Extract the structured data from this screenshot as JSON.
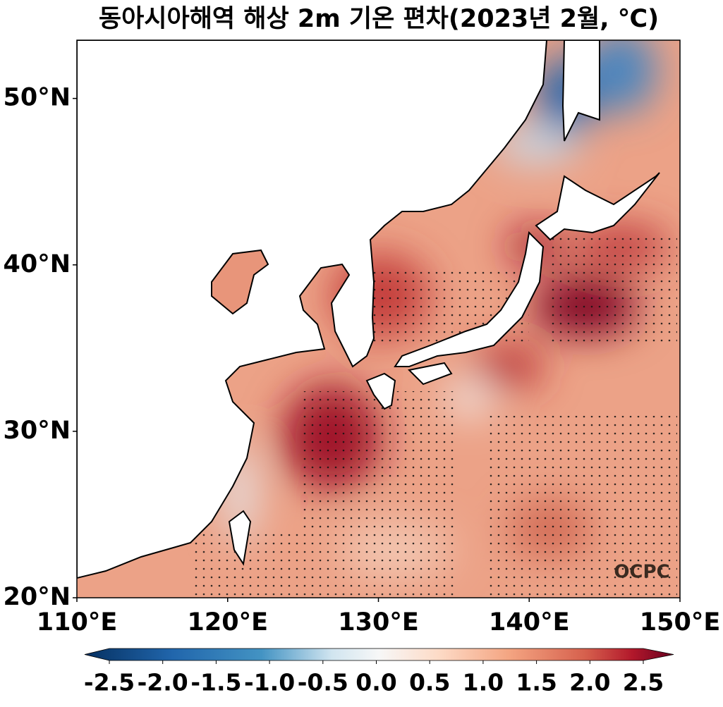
{
  "chart_data": {
    "type": "map",
    "title": "동아시아해역 해상 2m 기온 편차(2023년 2월, ℃)",
    "xlim": [
      110,
      150
    ],
    "ylim": [
      20,
      53.5
    ],
    "xticks": [
      {
        "value": 110,
        "label": "110°E"
      },
      {
        "value": 120,
        "label": "120°E"
      },
      {
        "value": 130,
        "label": "130°E"
      },
      {
        "value": 140,
        "label": "140°E"
      },
      {
        "value": 150,
        "label": "150°E"
      }
    ],
    "yticks": [
      {
        "value": 20,
        "label": "20°N"
      },
      {
        "value": 30,
        "label": "30°N"
      },
      {
        "value": 40,
        "label": "40°N"
      },
      {
        "value": 50,
        "label": "50°N"
      }
    ],
    "colorbar": {
      "lim": [
        -2.5,
        2.5
      ],
      "ticks": [
        -2.5,
        {
          "value": -2,
          "label": "-2.0"
        },
        -1.5,
        {
          "value": -1,
          "label": "-1.0"
        },
        -0.5,
        {
          "value": 0,
          "label": "0.0"
        },
        0.5,
        {
          "value": 1,
          "label": "1.0"
        },
        1.5,
        {
          "value": 2,
          "label": "2.0"
        },
        2.5
      ]
    },
    "watermark": "OCPC"
  }
}
